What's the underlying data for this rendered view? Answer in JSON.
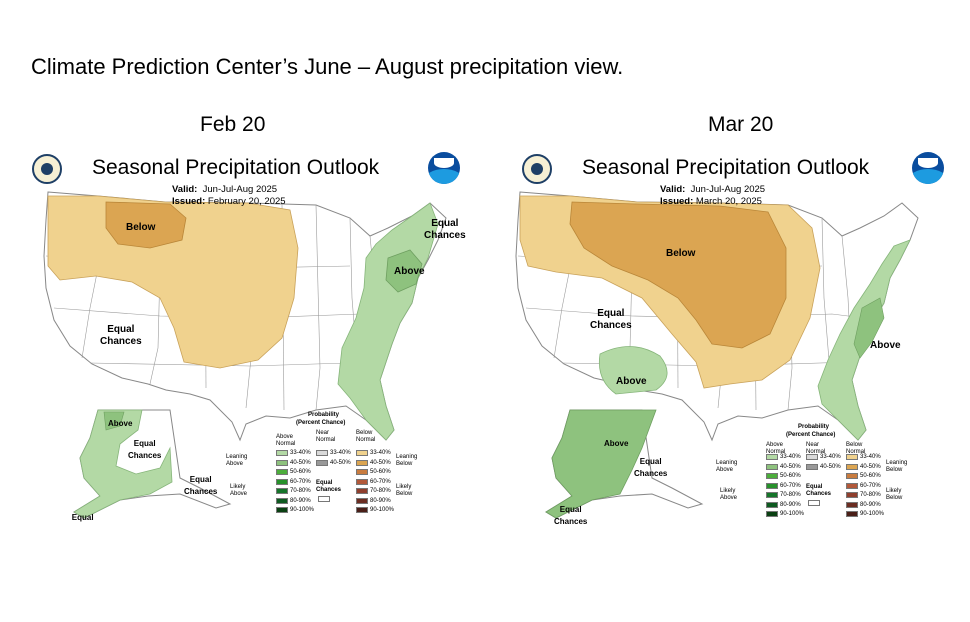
{
  "slide_title": "Climate Prediction Center’s June – August precipitation view.",
  "panels": [
    {
      "date_label": "Feb 20",
      "map_title": "Seasonal Precipitation Outlook",
      "valid_label": "Valid:",
      "valid_value": "Jun-Jul-Aug 2025",
      "issued_label": "Issued:",
      "issued_value": "February 20, 2025",
      "regions": {
        "below": "Below",
        "above": "Above",
        "equal_west": "Equal\nChances",
        "equal_ne": "Equal\nChances",
        "ak_above": "Above",
        "ak_equal": "Equal\nChances",
        "ak_equal_se": "Equal\nChances",
        "ak_equal_sw": "Equal\nChances"
      }
    },
    {
      "date_label": "Mar 20",
      "map_title": "Seasonal Precipitation Outlook",
      "valid_label": "Valid:",
      "valid_value": "Jun-Jul-Aug 2025",
      "issued_label": "Issued:",
      "issued_value": "March 20, 2025",
      "regions": {
        "below": "Below",
        "above_east": "Above",
        "above_sw": "Above",
        "equal_west": "Equal\nChances",
        "ak_above": "Above",
        "ak_equal": "Equal\nChances",
        "ak_equal_sw": "Equal\nChances"
      }
    }
  ],
  "legend": {
    "title": "Probability",
    "subtitle": "(Percent Chance)",
    "col_above": "Above\nNormal",
    "col_near": "Near\nNormal",
    "col_below": "Below\nNormal",
    "leaning_above": "Leaning\nAbove",
    "leaning_below": "Leaning\nBelow",
    "likely_above": "Likely\nAbove",
    "likely_below": "Likely\nBelow",
    "equal_chances": "Equal\nChances",
    "bins": [
      "33-40%",
      "40-50%",
      "50-60%",
      "60-70%",
      "70-80%",
      "80-90%",
      "90-100%"
    ],
    "near_bins": [
      "33-40%",
      "40-50%"
    ],
    "above_colors": [
      "#b3d9a5",
      "#8ec27e",
      "#4cad3c",
      "#27912b",
      "#16752a",
      "#0e5a20",
      "#0a4012"
    ],
    "near_colors": [
      "#d9d9d9",
      "#999999"
    ],
    "below_colors": [
      "#f0d28e",
      "#dba552",
      "#c97c40",
      "#b2593a",
      "#8f3f2e",
      "#6b2d22",
      "#4a1f18"
    ]
  },
  "colors": {
    "leaning_below": "#f0d28e",
    "below_40_50": "#dba552",
    "leaning_above": "#b3d9a5",
    "above_40_50": "#8ec27e"
  }
}
